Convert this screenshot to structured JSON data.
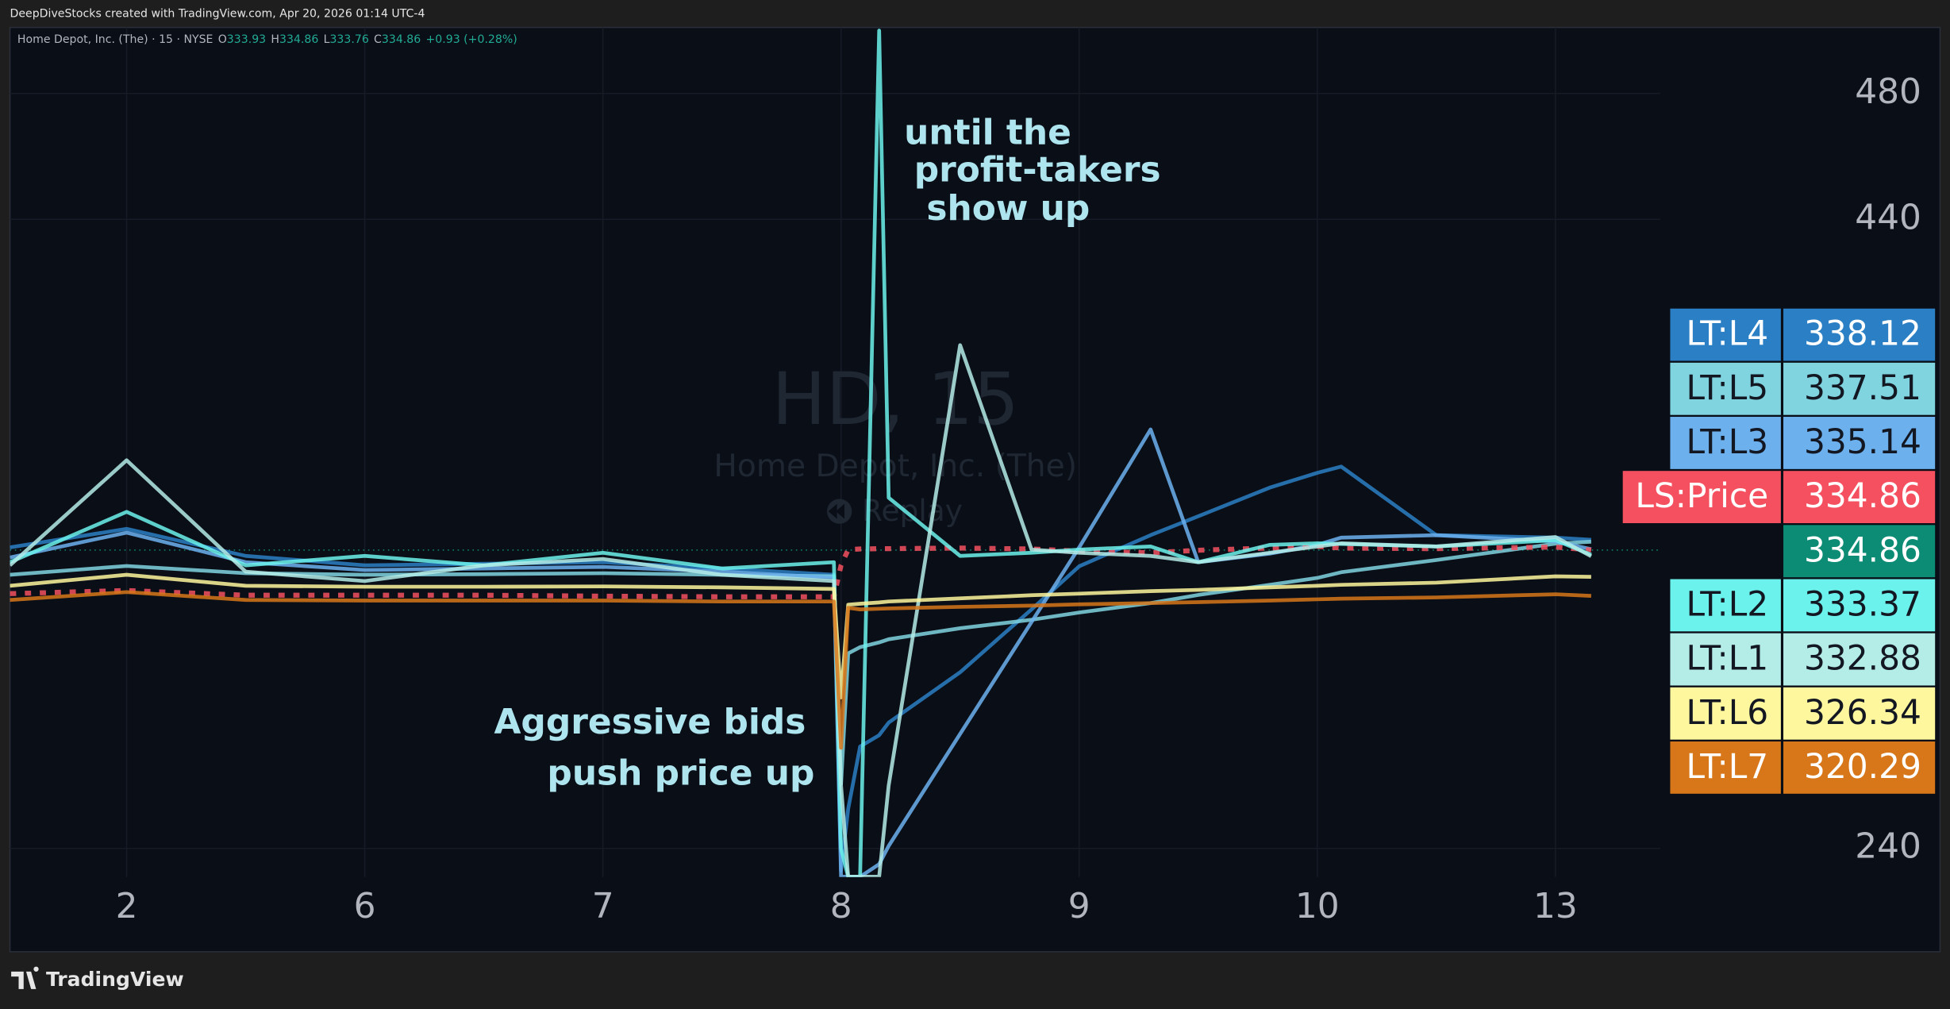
{
  "header": {
    "credit": "DeepDiveStocks created with TradingView.com, Apr 20, 2026 01:14 UTC-4",
    "symbol": "Home Depot, Inc. (The) · 15 · NYSE",
    "ohlc": [
      {
        "label": "O",
        "value": 333.93
      },
      {
        "label": "H",
        "value": 334.86
      },
      {
        "label": "L",
        "value": 333.76
      },
      {
        "label": "C",
        "value": 334.86
      }
    ],
    "change": "+0.93 (+0.28%)"
  },
  "watermark": {
    "symbol": "HD, 15",
    "name": "Home Depot, Inc. (The)",
    "mode": "Replay"
  },
  "footer": {
    "brand": "TradingView"
  },
  "chart_data": {
    "type": "line",
    "annotations": [
      {
        "lines": [
          "until the",
          "profit-takers",
          "show up"
        ]
      },
      {
        "lines": [
          "Aggressive bids",
          "push price up"
        ]
      }
    ],
    "x": [
      -0.49,
      0,
      0.5,
      1,
      1.5,
      2,
      2.5,
      2.97,
      3.0,
      3.03,
      3.08,
      3.16,
      3.2,
      3.5,
      3.8,
      4,
      4.3,
      4.5,
      4.8,
      5,
      5.1,
      5.5,
      6,
      6.15
    ],
    "xlim": [
      -0.49,
      6.44
    ],
    "xticks": [
      {
        "value": 0,
        "label": "2"
      },
      {
        "value": 1,
        "label": "6"
      },
      {
        "value": 2,
        "label": "7"
      },
      {
        "value": 3,
        "label": "8"
      },
      {
        "value": 4,
        "label": "9"
      },
      {
        "value": 5,
        "label": "10"
      },
      {
        "value": 6,
        "label": "13"
      }
    ],
    "ylim": [
      230.9,
      501
    ],
    "yticks": [
      240,
      440,
      480
    ],
    "grid": true,
    "last_price": 334.86,
    "last_price_color": "#0c8c74",
    "series": [
      {
        "name": "LT:L4",
        "color": "#2b7fc4",
        "values": [
          335.7,
          341.6,
          333,
          330,
          330.5,
          331,
          329,
          327,
          233,
          252.6,
          272.4,
          276,
          280,
          296,
          316,
          329.7,
          339.6,
          345.6,
          354.7,
          359.4,
          361.4,
          339.6,
          338.8,
          338.12
        ]
      },
      {
        "name": "LT:L5",
        "color": "#7fd4e0",
        "values": [
          327,
          329.8,
          327.5,
          327,
          327.2,
          327.5,
          327,
          326.5,
          260.5,
          302,
          304,
          305.5,
          306.5,
          310,
          312.7,
          315,
          318,
          320.6,
          323.8,
          326,
          327.8,
          331.7,
          336.9,
          337.51
        ]
      },
      {
        "name": "LT:L3",
        "color": "#6cb0ee",
        "values": [
          332.5,
          340.4,
          331,
          328.5,
          329,
          329.5,
          328,
          326,
          231,
          231,
          231,
          235,
          240.8,
          276.4,
          312,
          335.7,
          373.2,
          331,
          333.7,
          336.5,
          338.8,
          339.6,
          337.6,
          335.14
        ]
      },
      {
        "name": "LS:Price",
        "color": "#f5505f",
        "values": [
          321,
          322,
          320.5,
          320.5,
          320.5,
          320.2,
          320,
          320,
          330,
          335,
          335.2,
          335.3,
          335.3,
          335.5,
          335.2,
          334.5,
          334,
          334.8,
          335.5,
          336,
          335.5,
          335.3,
          335.8,
          334.86
        ]
      },
      {
        "name": "LT:L2",
        "color": "#6cf2ec",
        "values": [
          331,
          347,
          330,
          333,
          330,
          334,
          329,
          331,
          240,
          231,
          231,
          500,
          351.5,
          333,
          334,
          335,
          336,
          331,
          336.5,
          337,
          336.8,
          336,
          338,
          333.37
        ]
      },
      {
        "name": "LT:L1",
        "color": "#b4ece8",
        "values": [
          330,
          363.4,
          328,
          325,
          330,
          332,
          327,
          325,
          260,
          231,
          231,
          231,
          260,
          400,
          335,
          334,
          333,
          331,
          334,
          336,
          337,
          336,
          339,
          332.88
        ]
      },
      {
        "name": "LT:L6",
        "color": "#fff79e",
        "values": [
          323.5,
          327,
          323.5,
          323.2,
          323.2,
          323.3,
          323,
          322.5,
          288,
          317.5,
          317.8,
          318.2,
          318.5,
          319.5,
          320.5,
          321,
          321.8,
          322.2,
          323,
          323.5,
          323.8,
          324.5,
          326.5,
          326.34
        ]
      },
      {
        "name": "LT:L7",
        "color": "#d7771a",
        "values": [
          319,
          321.5,
          319,
          318.8,
          318.8,
          318.8,
          318.5,
          318.5,
          272,
          316.5,
          316,
          316.2,
          316.3,
          316.8,
          317.2,
          317.6,
          318,
          318.3,
          318.8,
          319.2,
          319.4,
          319.8,
          320.8,
          320.29
        ]
      }
    ]
  }
}
